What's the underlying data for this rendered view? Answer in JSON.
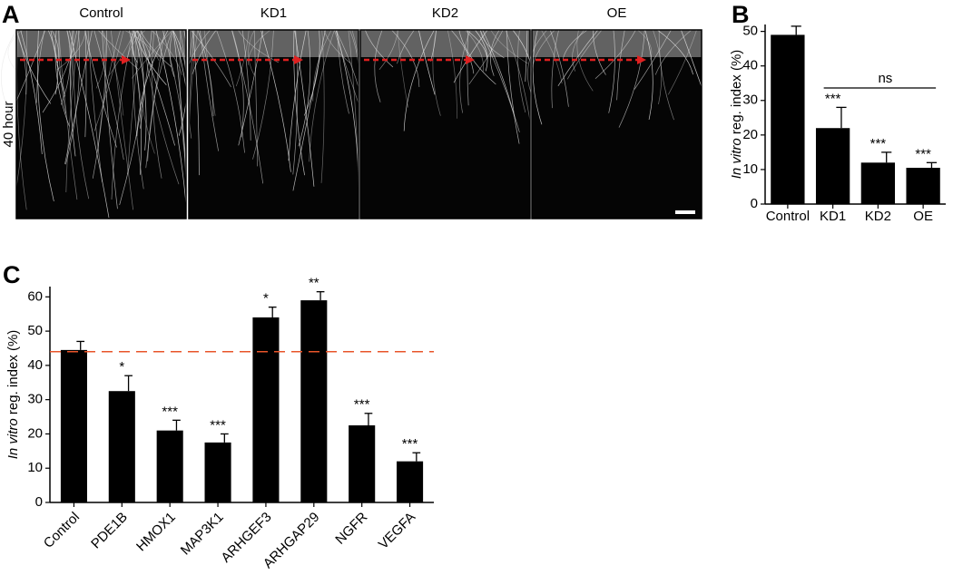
{
  "panel_labels": [
    "A",
    "B",
    "C"
  ],
  "images": {
    "columns": [
      "Control",
      "KD1",
      "KD2",
      "OE"
    ],
    "row_label": "40 hour"
  },
  "chart_data": [
    {
      "type": "bar",
      "categories": [
        "Control",
        "KD1",
        "KD2",
        "OE"
      ],
      "values": [
        49,
        22,
        12,
        10.5
      ],
      "errors": [
        2.5,
        6,
        3,
        1.5
      ],
      "significance": [
        null,
        "***",
        "***",
        "***"
      ],
      "bracket_label": "ns",
      "y_label": {
        "italic": "In vitro",
        "text": "reg. index (%)"
      },
      "color": "#000000",
      "ylim": [
        0,
        52
      ],
      "yticks": [
        0,
        10,
        20,
        30,
        40,
        50
      ]
    },
    {
      "type": "bar",
      "categories": [
        "Control",
        "PDE1B",
        "HMOX1",
        "MAP3K1",
        "ARHGEF3",
        "ARHGAP29",
        "NGFR",
        "VEGFA"
      ],
      "values": [
        44.5,
        32.5,
        21,
        17.5,
        54,
        59,
        22.5,
        12
      ],
      "errors": [
        2.5,
        4.5,
        3,
        2.5,
        3,
        2.5,
        3.5,
        2.5
      ],
      "significance": [
        null,
        "*",
        "***",
        "***",
        "*",
        "**",
        "***",
        "***"
      ],
      "reference_line": 44,
      "reference_color": "#e8552a",
      "y_label": {
        "italic": "In vitro",
        "text": "reg. index (%)"
      },
      "color": "#000000",
      "ylim": [
        0,
        63
      ],
      "yticks": [
        0,
        10,
        20,
        30,
        40,
        50,
        60
      ]
    }
  ]
}
